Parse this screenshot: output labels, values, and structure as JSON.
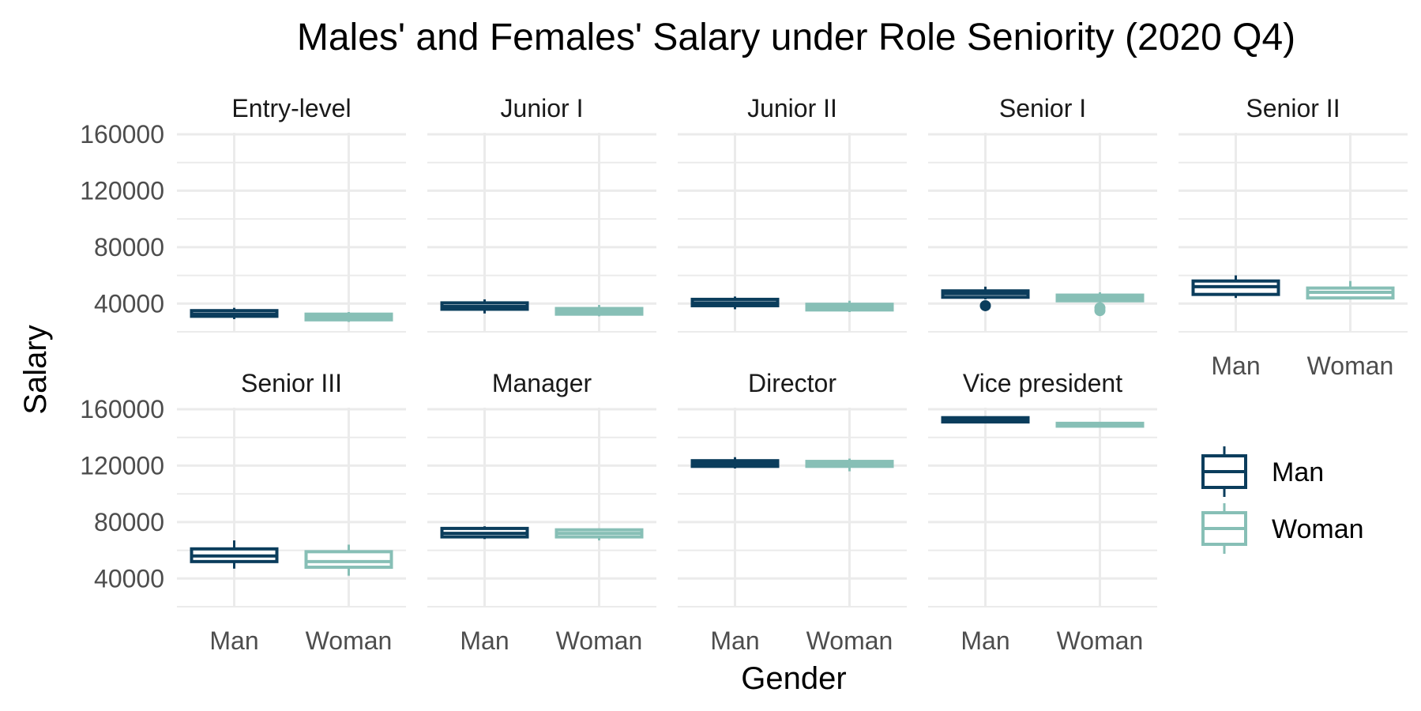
{
  "title": "Males' and Females' Salary under Role Seniority (2020 Q4)",
  "colors": {
    "Man": "#0b3d5c",
    "Woman": "#87bfb6",
    "grid": "#ebebeb"
  },
  "chart_data": {
    "type": "box",
    "title": "Males' and Females' Salary under Role Seniority (2020 Q4)",
    "xlabel": "Gender",
    "ylabel": "Salary",
    "ylim": [
      20000,
      160000
    ],
    "yticks": [
      40000,
      80000,
      120000,
      160000
    ],
    "yticks_labels": [
      "40000",
      "80000",
      "120000",
      "160000"
    ],
    "categories": [
      "Man",
      "Woman"
    ],
    "grid": true,
    "legend_position": "right",
    "legend": [
      "Man",
      "Woman"
    ],
    "panels": [
      {
        "label": "Entry-level",
        "boxes": [
          {
            "group": "Man",
            "min": 29000,
            "q1": 31000,
            "median": 32500,
            "q3": 35000,
            "max": 37000,
            "outliers": []
          },
          {
            "group": "Woman",
            "min": 27000,
            "q1": 28500,
            "median": 30500,
            "q3": 32500,
            "max": 34000,
            "outliers": []
          }
        ]
      },
      {
        "label": "Junior I",
        "boxes": [
          {
            "group": "Man",
            "min": 33000,
            "q1": 36000,
            "median": 38000,
            "q3": 40500,
            "max": 43000,
            "outliers": []
          },
          {
            "group": "Woman",
            "min": 31000,
            "q1": 32500,
            "median": 34500,
            "q3": 36500,
            "max": 39000,
            "outliers": []
          }
        ]
      },
      {
        "label": "Junior II",
        "boxes": [
          {
            "group": "Man",
            "min": 36000,
            "q1": 38500,
            "median": 40500,
            "q3": 43000,
            "max": 45000,
            "outliers": []
          },
          {
            "group": "Woman",
            "min": 34000,
            "q1": 35500,
            "median": 37500,
            "q3": 39500,
            "max": 42000,
            "outliers": []
          }
        ]
      },
      {
        "label": "Senior I",
        "boxes": [
          {
            "group": "Man",
            "min": 43000,
            "q1": 44500,
            "median": 47000,
            "q3": 49000,
            "max": 52000,
            "outliers": [
              38500
            ]
          },
          {
            "group": "Woman",
            "min": 38000,
            "q1": 42000,
            "median": 44000,
            "q3": 46000,
            "max": 48000,
            "outliers": [
              35000,
              37000
            ]
          }
        ]
      },
      {
        "label": "Senior II",
        "boxes": [
          {
            "group": "Man",
            "min": 44000,
            "q1": 46500,
            "median": 52000,
            "q3": 56000,
            "max": 60000,
            "outliers": []
          },
          {
            "group": "Woman",
            "min": 43000,
            "q1": 44000,
            "median": 48000,
            "q3": 51000,
            "max": 56000,
            "outliers": []
          }
        ]
      },
      {
        "label": "Senior III",
        "boxes": [
          {
            "group": "Man",
            "min": 47000,
            "q1": 52000,
            "median": 56000,
            "q3": 61000,
            "max": 67000,
            "outliers": []
          },
          {
            "group": "Woman",
            "min": 42000,
            "q1": 48000,
            "median": 52000,
            "q3": 59000,
            "max": 64000,
            "outliers": []
          }
        ]
      },
      {
        "label": "Manager",
        "boxes": [
          {
            "group": "Man",
            "min": 68000,
            "q1": 69500,
            "median": 72000,
            "q3": 75500,
            "max": 77000,
            "outliers": []
          },
          {
            "group": "Woman",
            "min": 67000,
            "q1": 69500,
            "median": 72000,
            "q3": 74500,
            "max": 75500,
            "outliers": []
          }
        ]
      },
      {
        "label": "Director",
        "boxes": [
          {
            "group": "Man",
            "min": 118000,
            "q1": 119500,
            "median": 121500,
            "q3": 123500,
            "max": 126000,
            "outliers": []
          },
          {
            "group": "Woman",
            "min": 116000,
            "q1": 119500,
            "median": 121000,
            "q3": 123000,
            "max": 125000,
            "outliers": []
          }
        ]
      },
      {
        "label": "Vice president",
        "boxes": [
          {
            "group": "Man",
            "min": 150500,
            "q1": 151000,
            "median": 152500,
            "q3": 154000,
            "max": 155000,
            "outliers": []
          },
          {
            "group": "Woman",
            "min": 147500,
            "q1": 148000,
            "median": 149000,
            "q3": 150000,
            "max": 150500,
            "outliers": []
          }
        ]
      }
    ]
  }
}
